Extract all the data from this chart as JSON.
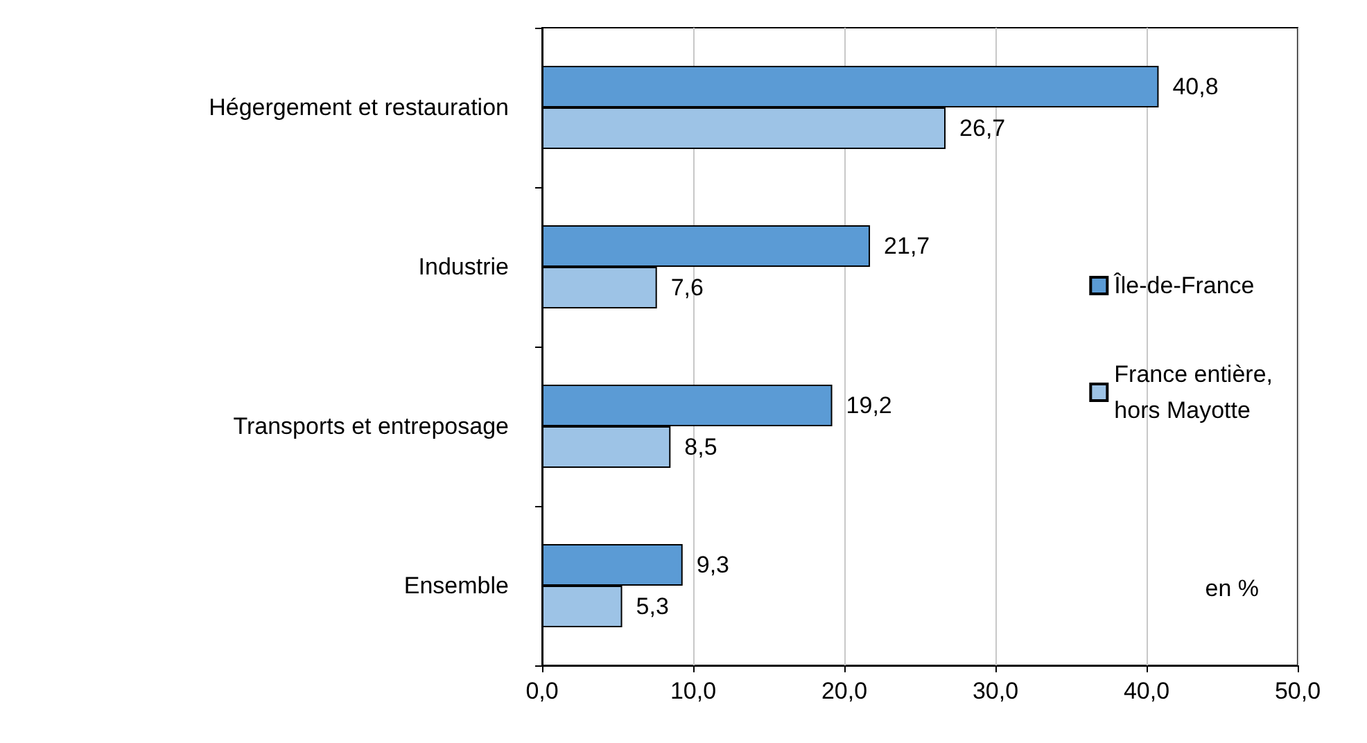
{
  "chart_data": {
    "type": "bar",
    "orientation": "horizontal",
    "categories": [
      "Hégergement et restauration",
      "Industrie",
      "Transports et entreposage",
      "Ensemble"
    ],
    "series": [
      {
        "name": "Île-de-France",
        "color": "#5b9bd5",
        "values": [
          40.8,
          21.7,
          19.2,
          9.3
        ],
        "value_labels": [
          "40,8",
          "21,7",
          "19,2",
          "9,3"
        ]
      },
      {
        "name": "France entière, hors Mayotte",
        "color": "#9dc3e6",
        "values": [
          26.7,
          7.6,
          8.5,
          5.3
        ],
        "value_labels": [
          "26,7",
          "7,6",
          "8,5",
          "5,3"
        ]
      }
    ],
    "xlim": [
      0,
      50
    ],
    "xticks": [
      {
        "value": 0,
        "label": "0,0"
      },
      {
        "value": 10,
        "label": "10,0"
      },
      {
        "value": 20,
        "label": "20,0"
      },
      {
        "value": 30,
        "label": "30,0"
      },
      {
        "value": 40,
        "label": "40,0"
      },
      {
        "value": 50,
        "label": "50,0"
      }
    ],
    "grid": "x",
    "legend": "right",
    "annotations": [
      "en %"
    ]
  }
}
